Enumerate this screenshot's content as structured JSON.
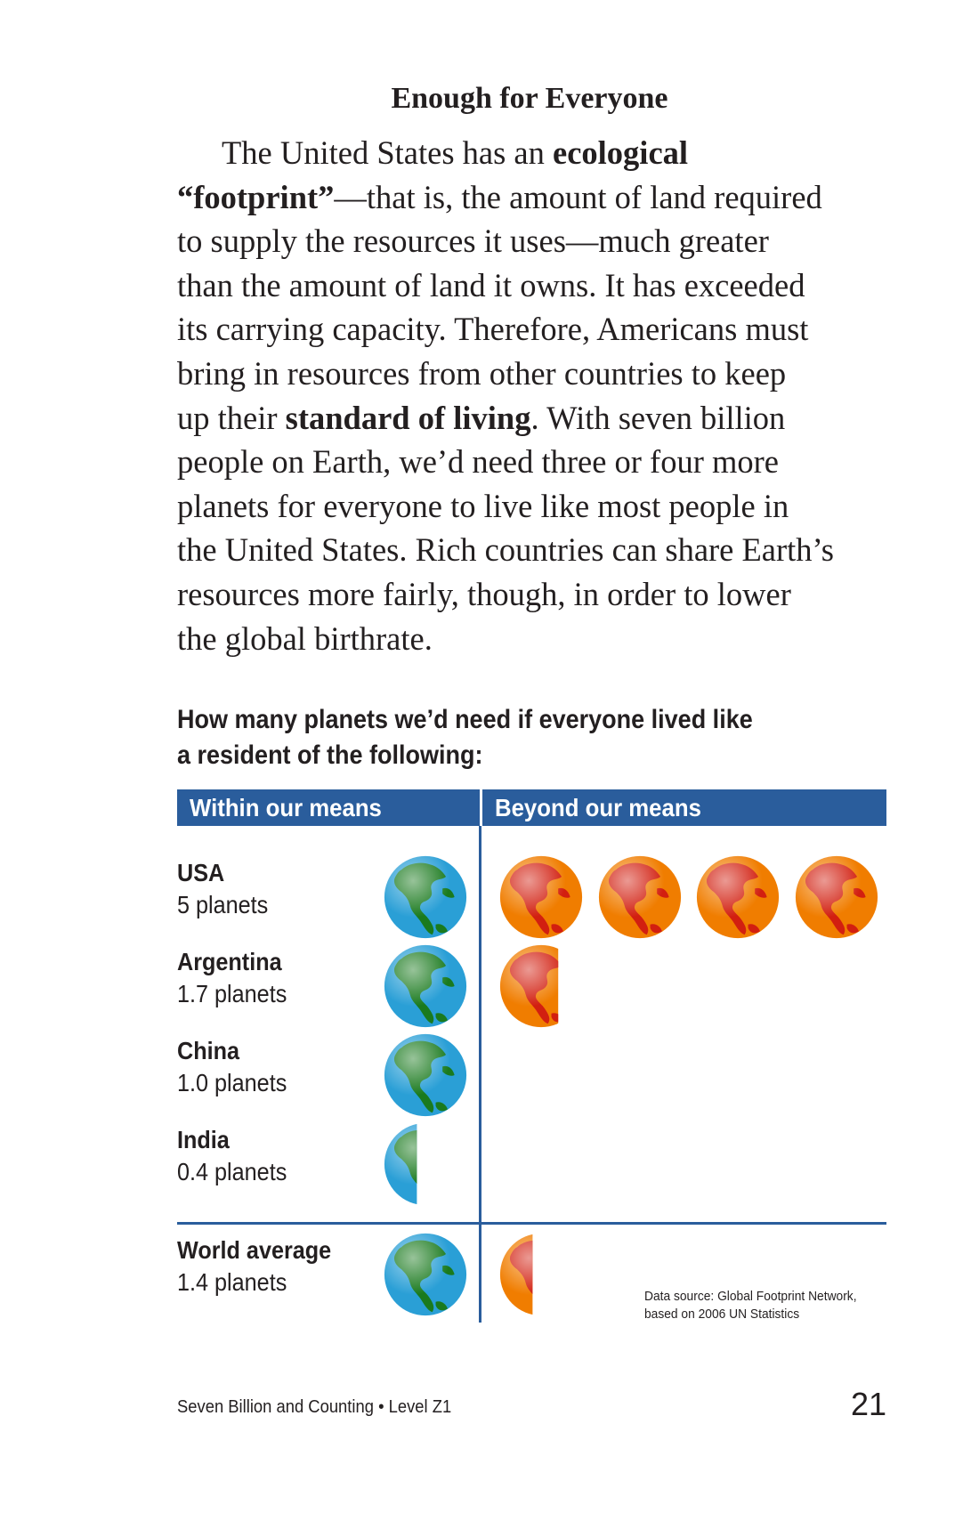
{
  "section": {
    "heading": "Enough for Everyone",
    "lines": [
      [
        {
          "t": "The United States has an "
        },
        {
          "t": "ecological",
          "b": true
        }
      ],
      [
        {
          "t": "“footprint”",
          "b": true
        },
        {
          "t": "—that is, the amount of land required"
        }
      ],
      [
        {
          "t": "to supply the resources it uses—much greater"
        }
      ],
      [
        {
          "t": "than the amount of land it owns. It has exceeded"
        }
      ],
      [
        {
          "t": "its carrying capacity. Therefore, Americans must"
        }
      ],
      [
        {
          "t": "bring in resources from other countries to keep"
        }
      ],
      [
        {
          "t": "up their "
        },
        {
          "t": "standard of living",
          "b": true
        },
        {
          "t": ". With seven billion"
        }
      ],
      [
        {
          "t": "people on Earth, we’d need three or four more"
        }
      ],
      [
        {
          "t": "planets for everyone to live like most people in"
        }
      ],
      [
        {
          "t": "the United States. Rich countries can share Earth’s"
        }
      ],
      [
        {
          "t": "resources more fairly, though, in order to lower"
        }
      ],
      [
        {
          "t": "the global birthrate."
        }
      ]
    ]
  },
  "chart": {
    "caption_line1": "How many planets we’d need if everyone lived like",
    "caption_line2": "a resident of the following:",
    "header_within": "Within our means",
    "header_beyond": "Beyond our means",
    "source_line1": "Data source: Global Footprint Network,",
    "source_line2": "based on 2006 UN Statistics"
  },
  "chart_data": {
    "type": "table",
    "title": "How many planets we’d need if everyone lived like a resident of the following:",
    "columns": [
      "Within our means",
      "Beyond our means"
    ],
    "rows": [
      {
        "country": "USA",
        "label": "5 planets",
        "value": 5.0
      },
      {
        "country": "Argentina",
        "label": "1.7 planets",
        "value": 1.7
      },
      {
        "country": "China",
        "label": "1.0 planets",
        "value": 1.0
      },
      {
        "country": "India",
        "label": "0.4 planets",
        "value": 0.4
      },
      {
        "country": "World average",
        "label": "1.4 planets",
        "value": 1.4
      }
    ],
    "colors": {
      "within": "#2a9fd6",
      "within_land": "#1a7a1e",
      "beyond": "#f07d00",
      "beyond_land": "#d21f10",
      "rule": "#2a5d9c"
    }
  },
  "footer": {
    "book": "Seven Billion and Counting • Level Z1",
    "page_number": "21"
  }
}
